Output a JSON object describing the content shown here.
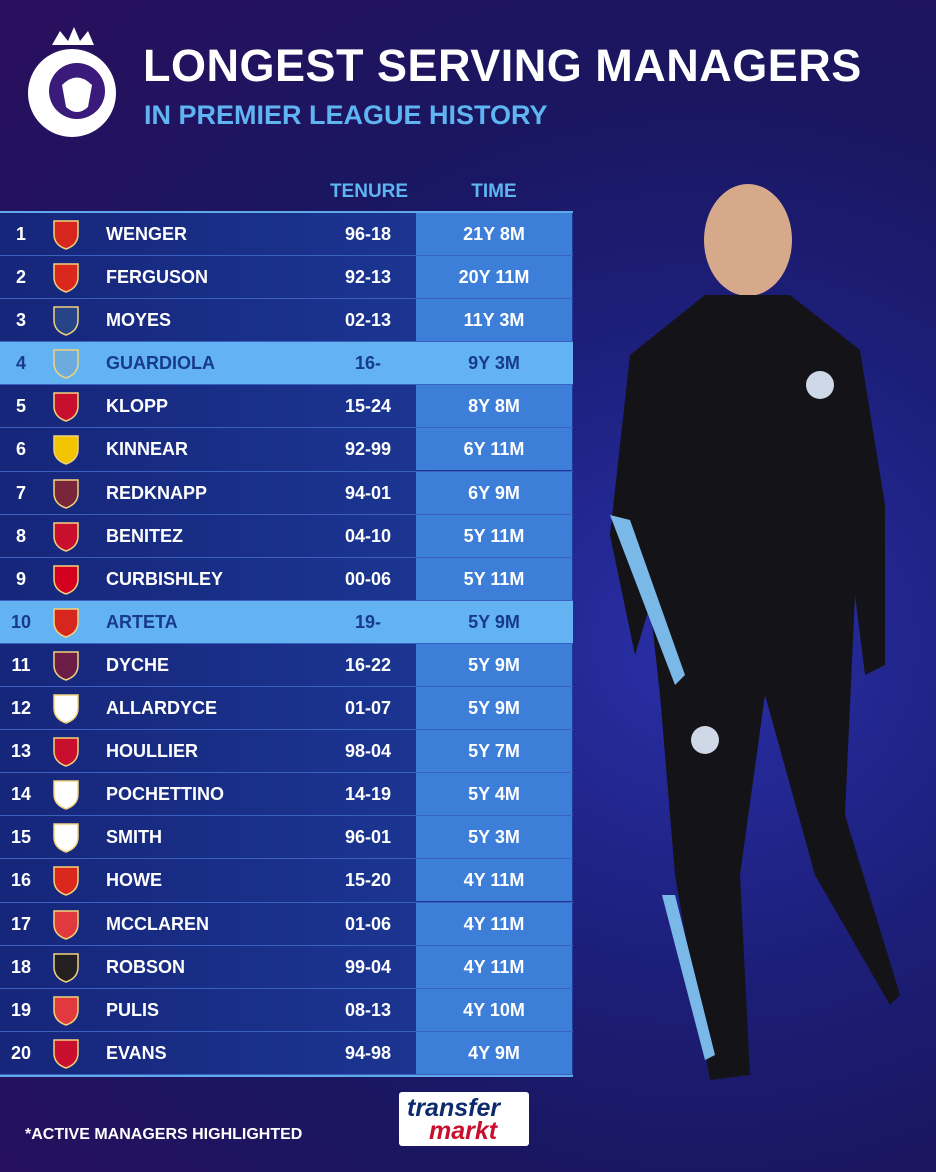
{
  "header": {
    "title": "LONGEST SERVING MANAGERS",
    "subtitle": "IN PREMIER LEAGUE HISTORY"
  },
  "table": {
    "columns": [
      "TENURE",
      "TIME"
    ],
    "rows": [
      {
        "rank": 1,
        "name": "WENGER",
        "tenure": "96-18",
        "time": "21Y 8M",
        "active": false,
        "crest_color": "#d7261e"
      },
      {
        "rank": 2,
        "name": "FERGUSON",
        "tenure": "92-13",
        "time": "20Y 11M",
        "active": false,
        "crest_color": "#da291c"
      },
      {
        "rank": 3,
        "name": "MOYES",
        "tenure": "02-13",
        "time": "11Y 3M",
        "active": false,
        "crest_color": "#274488"
      },
      {
        "rank": 4,
        "name": "GUARDIOLA",
        "tenure": "16-",
        "time": "9Y 3M",
        "active": true,
        "crest_color": "#6cabdd"
      },
      {
        "rank": 5,
        "name": "KLOPP",
        "tenure": "15-24",
        "time": "8Y 8M",
        "active": false,
        "crest_color": "#c8102e"
      },
      {
        "rank": 6,
        "name": "KINNEAR",
        "tenure": "92-99",
        "time": "6Y 11M",
        "active": false,
        "crest_color": "#f2c500"
      },
      {
        "rank": 7,
        "name": "REDKNAPP",
        "tenure": "94-01",
        "time": "6Y 9M",
        "active": false,
        "crest_color": "#7a263a"
      },
      {
        "rank": 8,
        "name": "BENITEZ",
        "tenure": "04-10",
        "time": "5Y 11M",
        "active": false,
        "crest_color": "#c8102e"
      },
      {
        "rank": 9,
        "name": "CURBISHLEY",
        "tenure": "00-06",
        "time": "5Y 11M",
        "active": false,
        "crest_color": "#d4001f"
      },
      {
        "rank": 10,
        "name": "ARTETA",
        "tenure": "19-",
        "time": "5Y 9M",
        "active": true,
        "crest_color": "#d7261e"
      },
      {
        "rank": 11,
        "name": "DYCHE",
        "tenure": "16-22",
        "time": "5Y 9M",
        "active": false,
        "crest_color": "#6c1d45"
      },
      {
        "rank": 12,
        "name": "ALLARDYCE",
        "tenure": "01-07",
        "time": "5Y 9M",
        "active": false,
        "crest_color": "#ffffff"
      },
      {
        "rank": 13,
        "name": "HOULLIER",
        "tenure": "98-04",
        "time": "5Y 7M",
        "active": false,
        "crest_color": "#c8102e"
      },
      {
        "rank": 14,
        "name": "POCHETTINO",
        "tenure": "14-19",
        "time": "5Y 4M",
        "active": false,
        "crest_color": "#ffffff"
      },
      {
        "rank": 15,
        "name": "SMITH",
        "tenure": "96-01",
        "time": "5Y 3M",
        "active": false,
        "crest_color": "#ffffff"
      },
      {
        "rank": 16,
        "name": "HOWE",
        "tenure": "15-20",
        "time": "4Y 11M",
        "active": false,
        "crest_color": "#da291c"
      },
      {
        "rank": 17,
        "name": "MCCLAREN",
        "tenure": "01-06",
        "time": "4Y 11M",
        "active": false,
        "crest_color": "#e03a3e"
      },
      {
        "rank": 18,
        "name": "ROBSON",
        "tenure": "99-04",
        "time": "4Y 11M",
        "active": false,
        "crest_color": "#241f20"
      },
      {
        "rank": 19,
        "name": "PULIS",
        "tenure": "08-13",
        "time": "4Y 10M",
        "active": false,
        "crest_color": "#e03a3e"
      },
      {
        "rank": 20,
        "name": "EVANS",
        "tenure": "94-98",
        "time": "4Y 9M",
        "active": false,
        "crest_color": "#c8102e"
      }
    ]
  },
  "footer": {
    "note": "*ACTIVE MANAGERS HIGHLIGHTED",
    "logo": [
      "transfer",
      "markt"
    ]
  }
}
